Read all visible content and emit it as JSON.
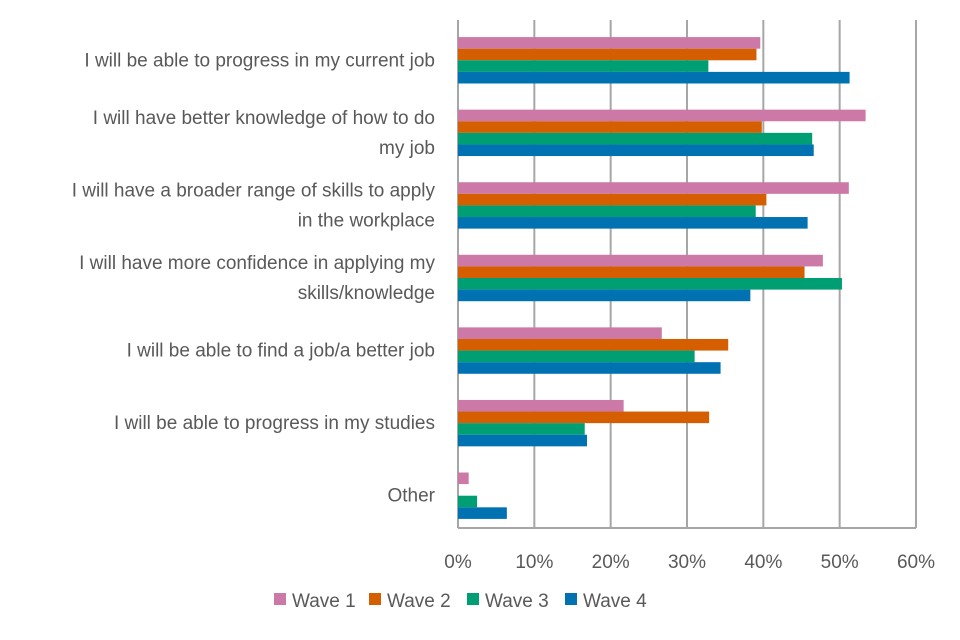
{
  "chart_data": {
    "type": "bar",
    "orientation": "horizontal",
    "title": "",
    "xlabel": "",
    "ylabel": "",
    "xlim": [
      0,
      60
    ],
    "grid": true,
    "legend_position": "bottom",
    "categories": [
      [
        "I will be able to progress in my current job"
      ],
      [
        "I will have better knowledge of how to do",
        "my job"
      ],
      [
        "I will have a broader range of skills to apply",
        "in the workplace"
      ],
      [
        "I will have more confidence in applying my",
        "skills/knowledge"
      ],
      [
        "I will be able to find a job/a better job"
      ],
      [
        "I will be able to progress in my studies"
      ],
      [
        "Other"
      ]
    ],
    "x_ticks": [
      "0%",
      "10%",
      "20%",
      "30%",
      "40%",
      "50%",
      "60%"
    ],
    "series": [
      {
        "name": "Wave 1",
        "color": "#CC79A7",
        "values": [
          39.6,
          53.4,
          51.2,
          47.8,
          26.7,
          21.7,
          1.4
        ]
      },
      {
        "name": "Wave 2",
        "color": "#D55E00",
        "values": [
          39.1,
          39.8,
          40.4,
          45.4,
          35.4,
          32.9,
          0
        ]
      },
      {
        "name": "Wave 3",
        "color": "#009E73",
        "values": [
          32.8,
          46.4,
          39.0,
          50.3,
          31.0,
          16.6,
          2.5
        ]
      },
      {
        "name": "Wave 4",
        "color": "#0072B2",
        "values": [
          51.3,
          46.6,
          45.8,
          38.3,
          34.4,
          16.9,
          6.4
        ]
      }
    ]
  }
}
